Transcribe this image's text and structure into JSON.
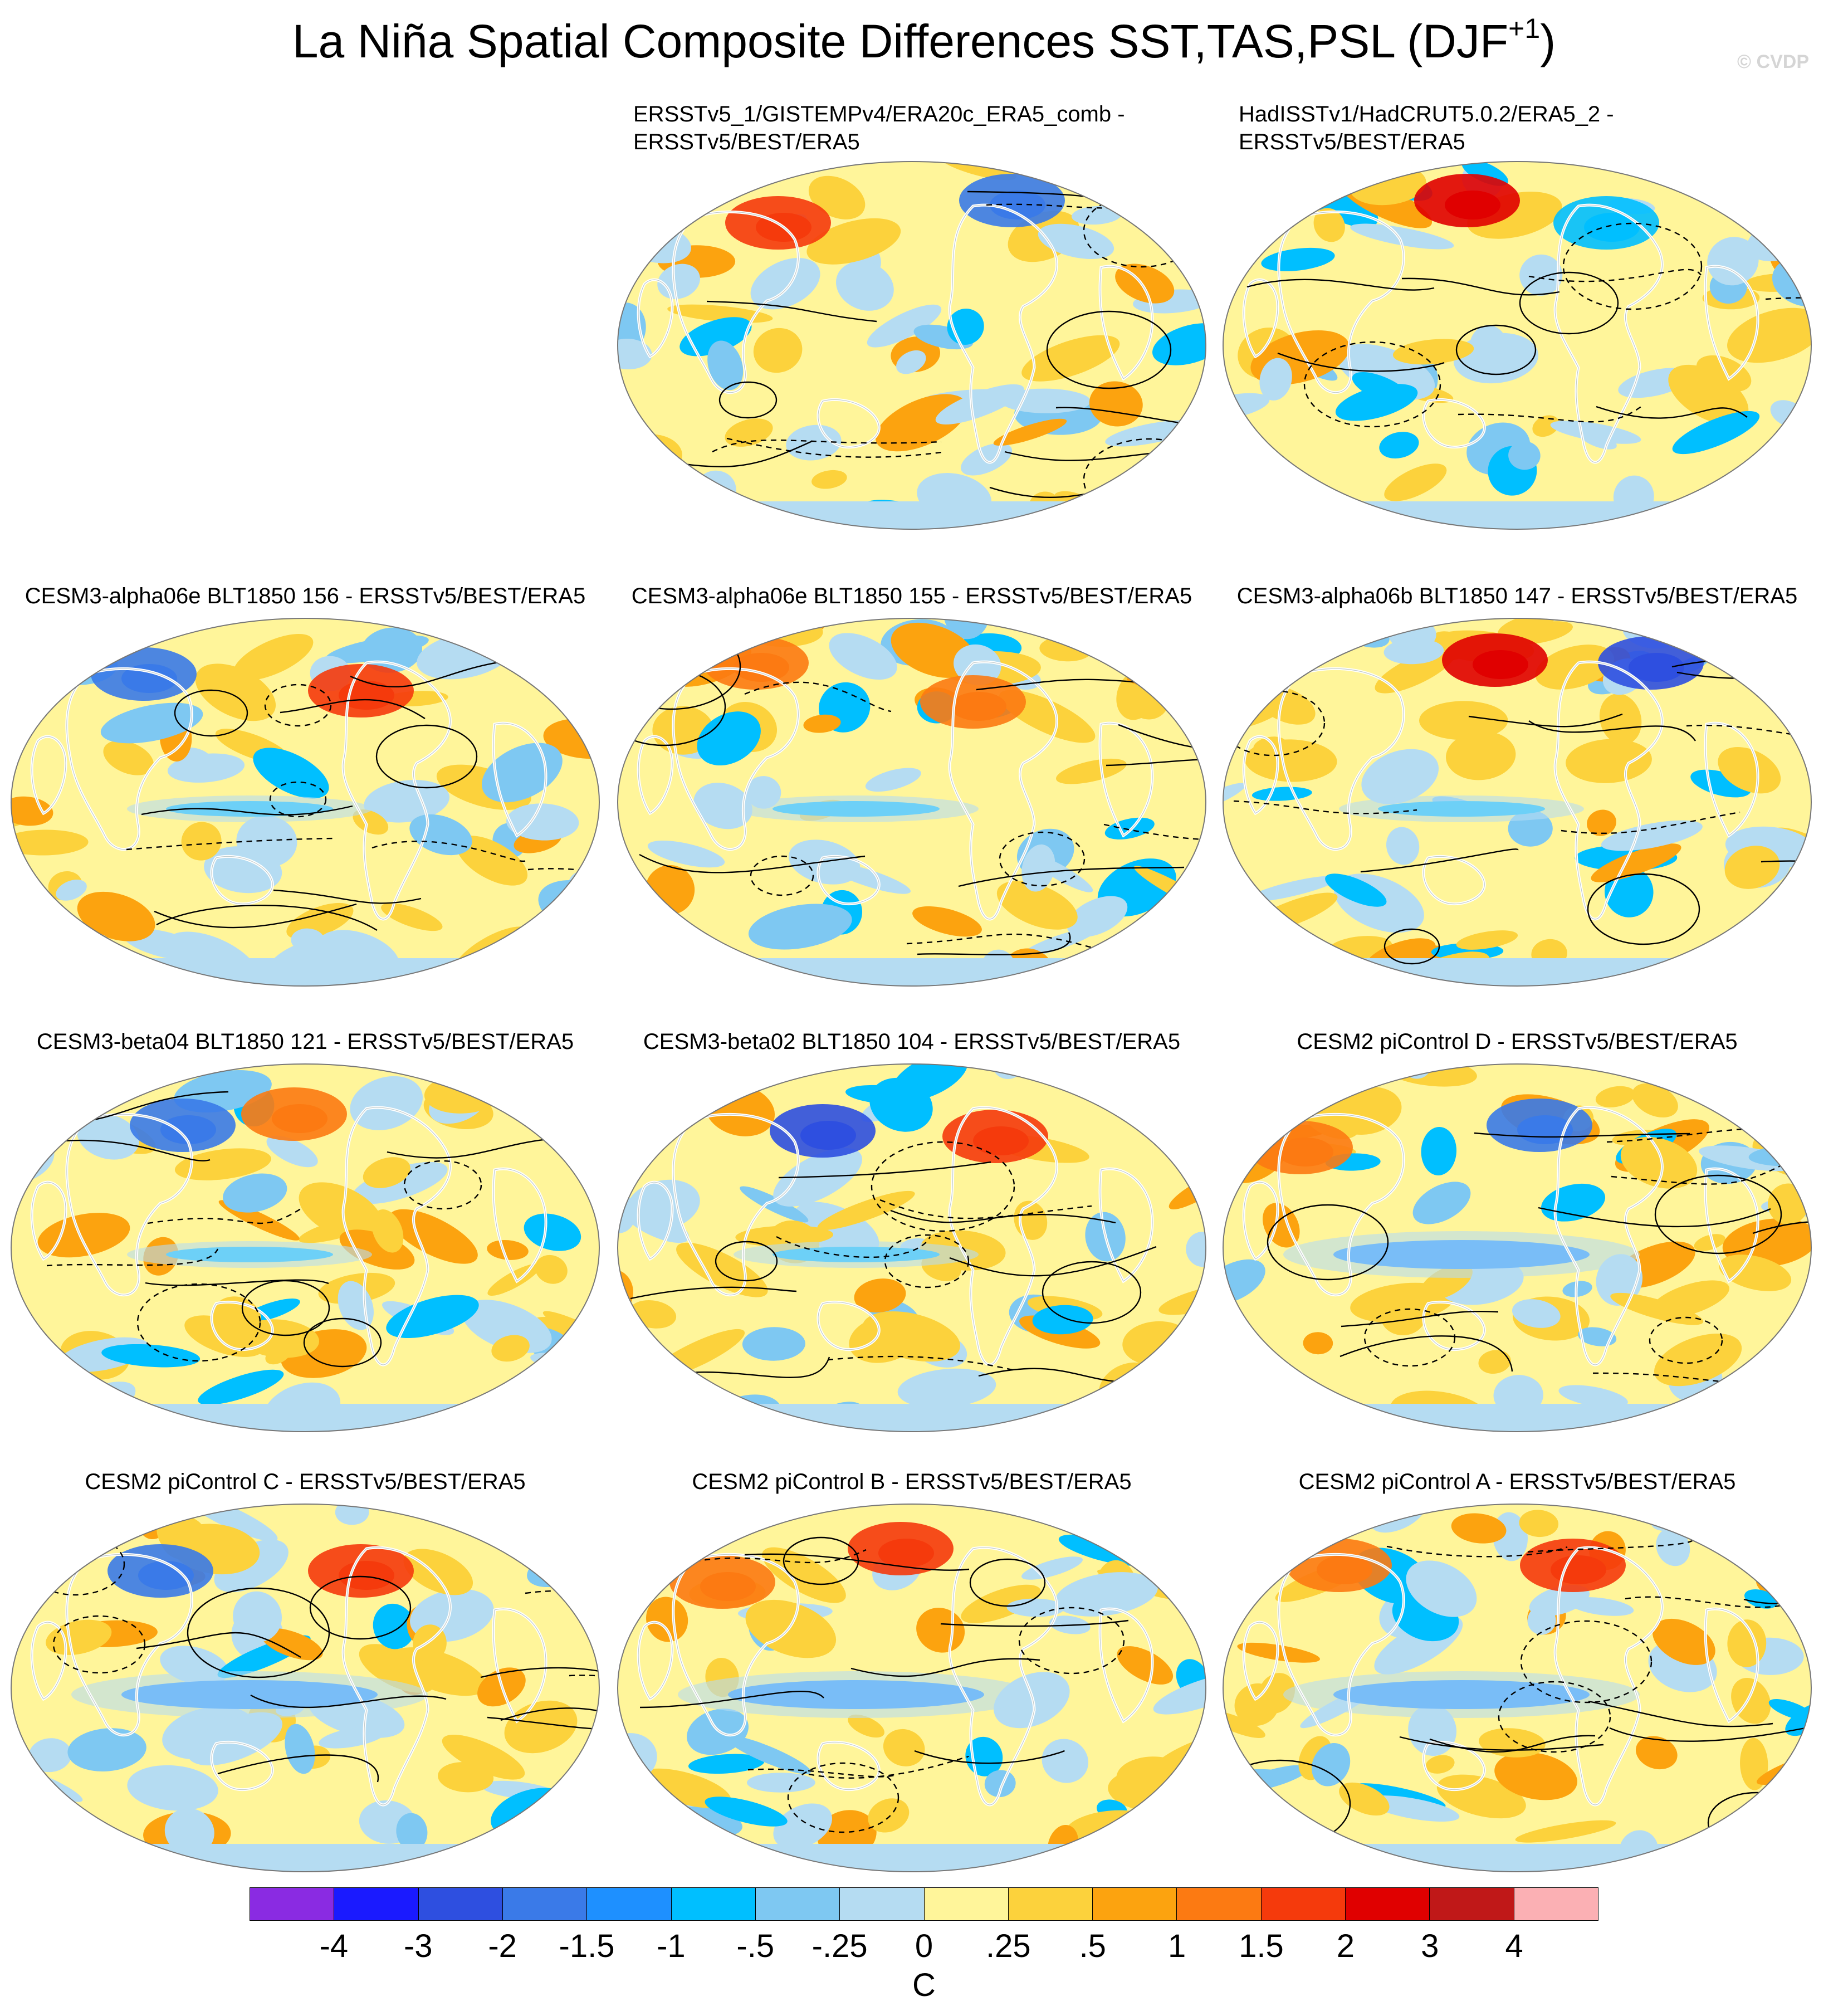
{
  "figure": {
    "title_main": "La Niña Spatial Composite Differences SST,TAS,PSL (DJF",
    "title_sup": "+1",
    "title_close": ")",
    "credit": "© CVDP"
  },
  "panels": [
    {
      "title": [
        "ERSSTv5_1/GISTEMPv4/ERA20c_ERA5_comb -",
        "ERSSTv5/BEST/ERA5"
      ],
      "col": 1,
      "row": 0
    },
    {
      "title": [
        "HadISSTv1/HadCRUT5.0.2/ERA5_2 -",
        "ERSSTv5/BEST/ERA5"
      ],
      "col": 2,
      "row": 0
    },
    {
      "title": [
        "CESM3-alpha06e BLT1850 156 - ERSSTv5/BEST/ERA5"
      ],
      "col": 0,
      "row": 1
    },
    {
      "title": [
        "CESM3-alpha06e BLT1850 155 - ERSSTv5/BEST/ERA5"
      ],
      "col": 1,
      "row": 1
    },
    {
      "title": [
        "CESM3-alpha06b BLT1850 147 - ERSSTv5/BEST/ERA5"
      ],
      "col": 2,
      "row": 1
    },
    {
      "title": [
        "CESM3-beta04 BLT1850 121 - ERSSTv5/BEST/ERA5"
      ],
      "col": 0,
      "row": 2
    },
    {
      "title": [
        "CESM3-beta02 BLT1850 104 - ERSSTv5/BEST/ERA5"
      ],
      "col": 1,
      "row": 2
    },
    {
      "title": [
        "CESM2 piControl D - ERSSTv5/BEST/ERA5"
      ],
      "col": 2,
      "row": 2
    },
    {
      "title": [
        "CESM2 piControl C - ERSSTv5/BEST/ERA5"
      ],
      "col": 0,
      "row": 3
    },
    {
      "title": [
        "CESM2 piControl B - ERSSTv5/BEST/ERA5"
      ],
      "col": 1,
      "row": 3
    },
    {
      "title": [
        "CESM2 piControl A - ERSSTv5/BEST/ERA5"
      ],
      "col": 2,
      "row": 3
    }
  ],
  "colorbar": {
    "unit": "C",
    "labels": [
      "-4",
      "-3",
      "-2",
      "-1.5",
      "-1",
      "-.5",
      "-.25",
      "0",
      ".25",
      ".5",
      "1",
      "1.5",
      "2",
      "3",
      "4"
    ],
    "colors": [
      "#8a2be2",
      "#1a1aff",
      "#2e4fe0",
      "#3a7ae8",
      "#1e90ff",
      "#00bfff",
      "#7ec8f2",
      "#b5dcf2",
      "#fff59a",
      "#fcd23c",
      "#fca30f",
      "#fc7a12",
      "#f53a0c",
      "#e00000",
      "#c01818",
      "#fbb0b4"
    ]
  }
}
